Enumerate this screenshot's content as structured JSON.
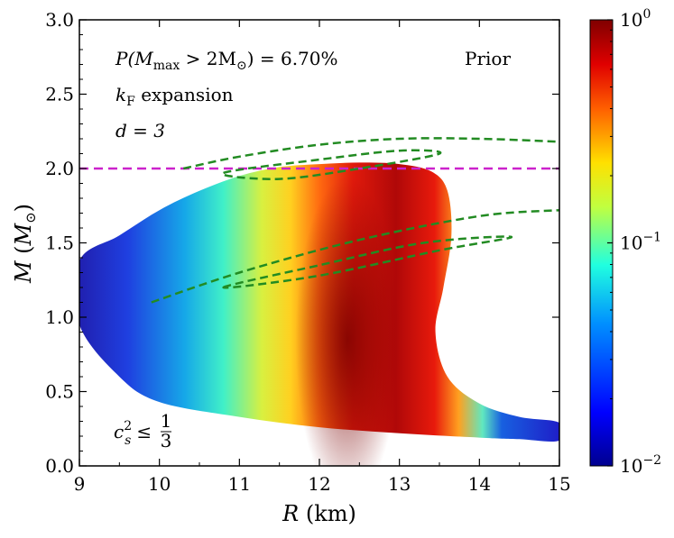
{
  "chart_data": {
    "type": "heatmap",
    "title": "",
    "xlabel": "R (km)",
    "ylabel": "M (M⊙)",
    "xlim": [
      9,
      15
    ],
    "ylim": [
      0.0,
      3.0
    ],
    "x_ticks": [
      "9",
      "10",
      "11",
      "12",
      "13",
      "14",
      "15"
    ],
    "y_ticks": [
      "0.0",
      "0.5",
      "1.0",
      "1.5",
      "2.0",
      "2.5",
      "3.0"
    ],
    "colorbar": {
      "scale": "log",
      "range": [
        0.01,
        1
      ],
      "colormap": "jet",
      "tick_labels": [
        {
          "base": "10",
          "exp": "0"
        },
        {
          "base": "10",
          "exp": "−1"
        },
        {
          "base": "10",
          "exp": "−2"
        }
      ],
      "tick_values": [
        1,
        0.1,
        0.01
      ]
    },
    "density_ridge": [
      {
        "M": 0.25,
        "R": 13.6
      },
      {
        "M": 0.5,
        "R": 12.4
      },
      {
        "M": 1.0,
        "R": 12.3
      },
      {
        "M": 1.5,
        "R": 12.3
      },
      {
        "M": 1.85,
        "R": 12.3
      }
    ],
    "region_boundary": {
      "upper": [
        [
          9.0,
          1.38
        ],
        [
          9.5,
          1.55
        ],
        [
          10.0,
          1.72
        ],
        [
          10.5,
          1.85
        ],
        [
          11.0,
          1.95
        ],
        [
          11.5,
          2.01
        ],
        [
          12.0,
          2.03
        ],
        [
          12.5,
          2.04
        ],
        [
          13.0,
          2.03
        ],
        [
          13.4,
          1.98
        ],
        [
          13.6,
          1.85
        ],
        [
          13.65,
          1.55
        ],
        [
          13.55,
          1.2
        ],
        [
          13.45,
          0.9
        ],
        [
          13.6,
          0.6
        ],
        [
          14.0,
          0.42
        ],
        [
          14.5,
          0.33
        ],
        [
          15.0,
          0.29
        ]
      ],
      "lower": [
        [
          15.0,
          0.17
        ],
        [
          14.5,
          0.18
        ],
        [
          14.0,
          0.19
        ],
        [
          13.0,
          0.22
        ],
        [
          12.0,
          0.26
        ],
        [
          11.0,
          0.33
        ],
        [
          10.0,
          0.43
        ],
        [
          9.5,
          0.6
        ],
        [
          9.0,
          0.95
        ]
      ]
    },
    "reference_line": {
      "y": 2.0,
      "color": "#cc22cc",
      "style": "dashed"
    },
    "contours": [
      {
        "name": "upper-outer",
        "color": "#228b22",
        "style": "dashed",
        "points": [
          [
            10.3,
            2.0
          ],
          [
            11.0,
            2.08
          ],
          [
            12.0,
            2.16
          ],
          [
            13.0,
            2.2
          ],
          [
            14.0,
            2.2
          ],
          [
            15.0,
            2.18
          ]
        ]
      },
      {
        "name": "upper-inner",
        "color": "#228b22",
        "style": "dashed",
        "points": [
          [
            10.8,
            1.97
          ],
          [
            12.0,
            2.06
          ],
          [
            13.0,
            2.12
          ],
          [
            13.5,
            2.1
          ],
          [
            12.5,
            2.0
          ],
          [
            11.5,
            1.93
          ]
        ]
      },
      {
        "name": "lower-outer",
        "color": "#228b22",
        "style": "dashed",
        "points": [
          [
            9.9,
            1.1
          ],
          [
            11.0,
            1.3
          ],
          [
            12.5,
            1.52
          ],
          [
            14.0,
            1.68
          ],
          [
            15.0,
            1.72
          ]
        ]
      },
      {
        "name": "lower-inner",
        "color": "#228b22",
        "style": "dashed",
        "points": [
          [
            10.8,
            1.2
          ],
          [
            12.0,
            1.35
          ],
          [
            13.3,
            1.5
          ],
          [
            14.4,
            1.54
          ],
          [
            13.5,
            1.45
          ],
          [
            12.0,
            1.28
          ]
        ]
      }
    ],
    "annotations": {
      "prob_left": "P(M",
      "prob_sub1": "max",
      "prob_mid": " > 2M",
      "prob_sub2": "⊙",
      "prob_right": ") = 6.70%",
      "prior": "Prior",
      "kf_k": "k",
      "kf_sub": "F",
      "kf_rest": " expansion",
      "d_label": "d = 3",
      "cs_c": "c",
      "cs_sub": "s",
      "cs_sup": "2",
      "cs_le": "≤",
      "cs_num": "1",
      "cs_den": "3"
    },
    "colors": {
      "magenta_line": "#cc22cc",
      "contour_green": "#228b22"
    }
  }
}
